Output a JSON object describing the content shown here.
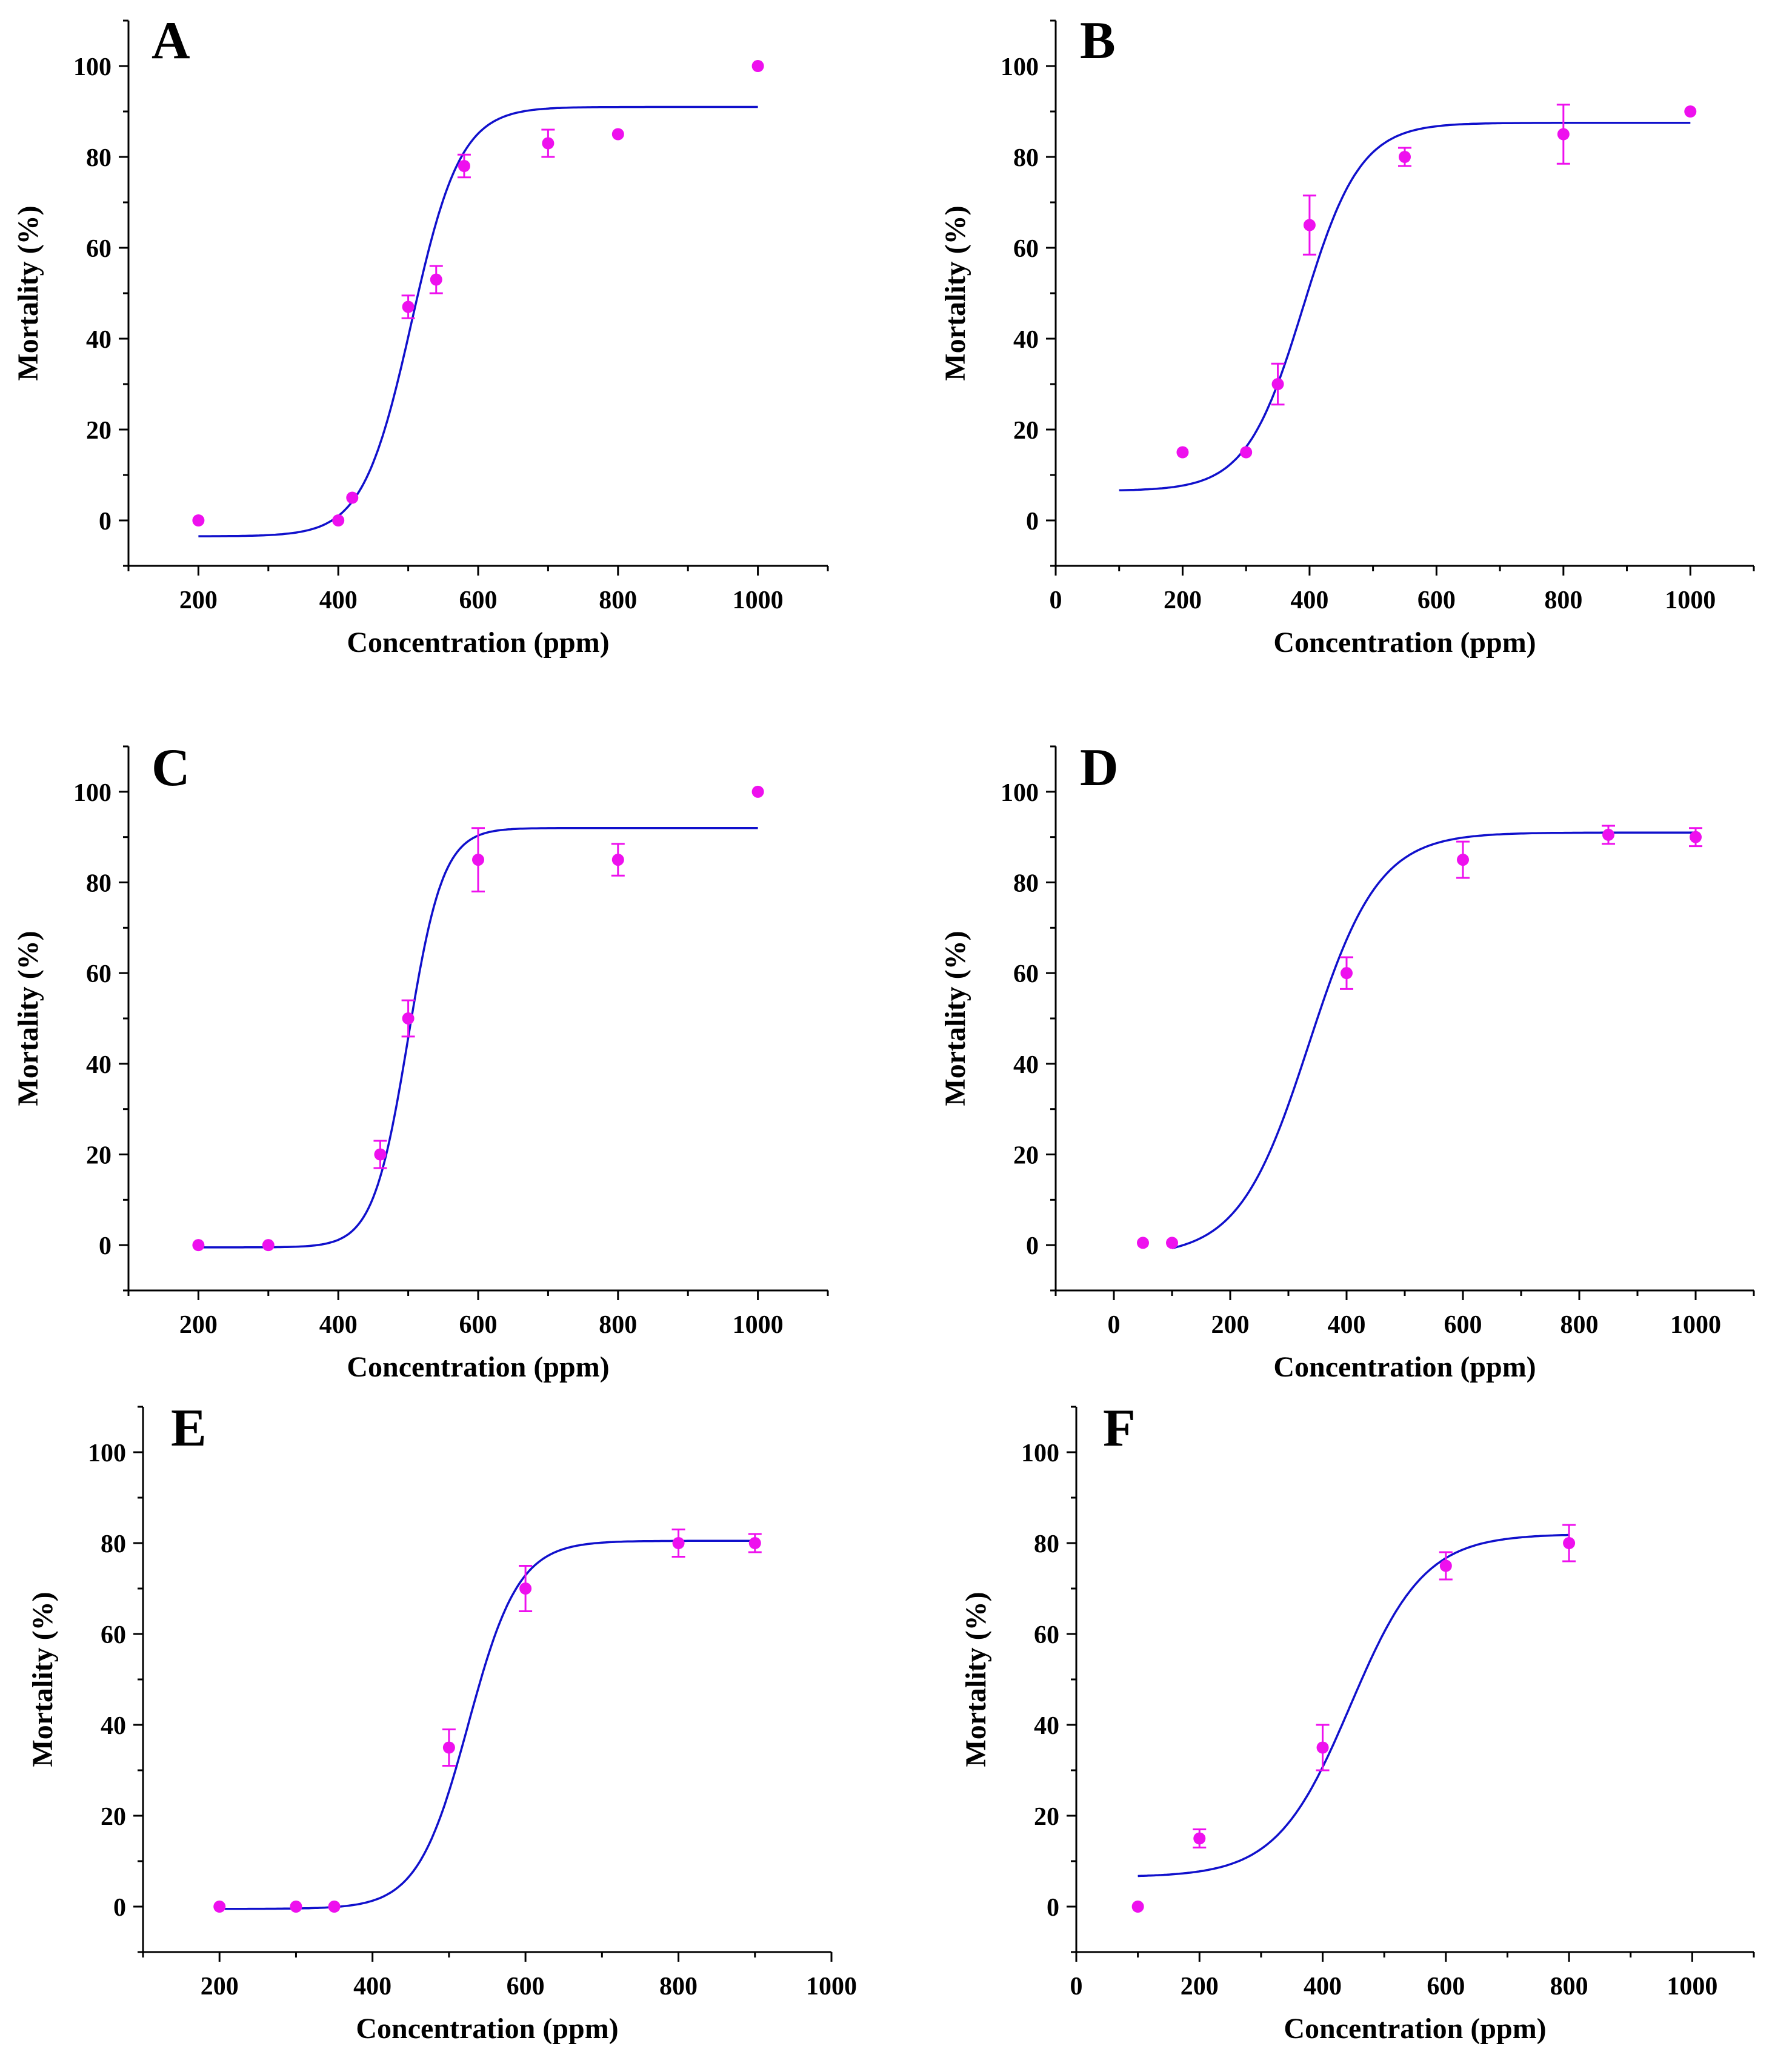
{
  "figure": {
    "point_color": "#EE10EE",
    "curve_color": "#1010CC",
    "axis_color": "#000000"
  },
  "chart_data": [
    {
      "panel": "A",
      "type": "scatter",
      "xlabel": "Concentration (ppm)",
      "ylabel": "Mortality (%)",
      "xlim": [
        100,
        1100
      ],
      "ylim": [
        -10,
        110
      ],
      "xticks": [
        200,
        400,
        600,
        800,
        1000
      ],
      "yticks": [
        0,
        20,
        40,
        60,
        80,
        100
      ],
      "x": [
        200,
        400,
        420,
        500,
        540,
        580,
        700,
        800,
        1000
      ],
      "y": [
        0,
        0,
        5,
        47,
        53,
        78,
        83,
        85,
        100
      ],
      "err": [
        0,
        0,
        0,
        2.5,
        3,
        2.5,
        3,
        0,
        0
      ],
      "fit": {
        "model": "boltzmann",
        "A1": -3.5,
        "A2": 91,
        "x0": 505,
        "dx": 35,
        "xmin": 200,
        "xmax": 1000
      }
    },
    {
      "panel": "B",
      "type": "scatter",
      "xlabel": "Concentration (ppm)",
      "ylabel": "Mortality (%)",
      "xlim": [
        0,
        1100
      ],
      "ylim": [
        -10,
        110
      ],
      "xticks": [
        0,
        200,
        400,
        600,
        800,
        1000
      ],
      "yticks": [
        0,
        20,
        40,
        60,
        80,
        100
      ],
      "x": [
        200,
        300,
        350,
        400,
        550,
        800,
        1000
      ],
      "y": [
        15,
        15,
        30,
        65,
        80,
        85,
        90
      ],
      "err": [
        0,
        0,
        4.5,
        6.5,
        2,
        6.5,
        0
      ],
      "fit": {
        "model": "boltzmann",
        "A1": 6.5,
        "A2": 87.5,
        "x0": 390,
        "dx": 45,
        "xmin": 100,
        "xmax": 1000
      }
    },
    {
      "panel": "C",
      "type": "scatter",
      "xlabel": "Concentration (ppm)",
      "ylabel": "Mortality (%)",
      "xlim": [
        100,
        1100
      ],
      "ylim": [
        -10,
        110
      ],
      "xticks": [
        200,
        400,
        600,
        800,
        1000
      ],
      "yticks": [
        0,
        20,
        40,
        60,
        80,
        100
      ],
      "x": [
        200,
        300,
        460,
        500,
        600,
        800,
        1000
      ],
      "y": [
        0,
        0,
        20,
        50,
        85,
        85,
        100
      ],
      "err": [
        0,
        0,
        3,
        4,
        7,
        3.5,
        0
      ],
      "fit": {
        "model": "boltzmann",
        "A1": -0.5,
        "A2": 92,
        "x0": 500,
        "dx": 25,
        "xmin": 200,
        "xmax": 1000
      }
    },
    {
      "panel": "D",
      "type": "scatter",
      "xlabel": "Concentration (ppm)",
      "ylabel": "Mortality (%)",
      "xlim": [
        -100,
        1100
      ],
      "ylim": [
        -10,
        110
      ],
      "xticks": [
        0,
        200,
        400,
        600,
        800,
        1000
      ],
      "yticks": [
        0,
        20,
        40,
        60,
        80,
        100
      ],
      "x": [
        50,
        100,
        400,
        600,
        850,
        1000
      ],
      "y": [
        0.5,
        0.5,
        60,
        85,
        90.5,
        90
      ],
      "err": [
        0,
        0,
        3.5,
        4,
        2,
        2
      ],
      "fit": {
        "model": "boltzmann",
        "A1": -2.5,
        "A2": 91,
        "x0": 335,
        "dx": 60,
        "xmin": 100,
        "xmax": 1000
      }
    },
    {
      "panel": "E",
      "type": "scatter",
      "xlabel": "Concentration (ppm)",
      "ylabel": "Mortality (%)",
      "xlim": [
        100,
        1000
      ],
      "ylim": [
        -10,
        110
      ],
      "xticks": [
        200,
        400,
        600,
        800,
        1000
      ],
      "yticks": [
        0,
        20,
        40,
        60,
        80,
        100
      ],
      "x": [
        200,
        300,
        350,
        500,
        600,
        800,
        900
      ],
      "y": [
        0,
        0,
        0,
        35,
        70,
        80,
        80
      ],
      "err": [
        0,
        0,
        0,
        4,
        5,
        3,
        2
      ],
      "fit": {
        "model": "boltzmann",
        "A1": -0.5,
        "A2": 80.5,
        "x0": 525,
        "dx": 33,
        "xmin": 200,
        "xmax": 900
      }
    },
    {
      "panel": "F",
      "type": "scatter",
      "xlabel": "Concentration (ppm)",
      "ylabel": "Mortality (%)",
      "xlim": [
        0,
        1100
      ],
      "ylim": [
        -10,
        110
      ],
      "xticks": [
        0,
        200,
        400,
        600,
        800,
        1000
      ],
      "yticks": [
        0,
        20,
        40,
        60,
        80,
        100
      ],
      "x": [
        100,
        200,
        400,
        600,
        800
      ],
      "y": [
        0,
        15,
        35,
        75,
        80
      ],
      "err": [
        0,
        2,
        5,
        3,
        4
      ],
      "fit": {
        "model": "boltzmann",
        "A1": 6.5,
        "A2": 82,
        "x0": 445,
        "dx": 60,
        "xmin": 100,
        "xmax": 800
      }
    }
  ]
}
